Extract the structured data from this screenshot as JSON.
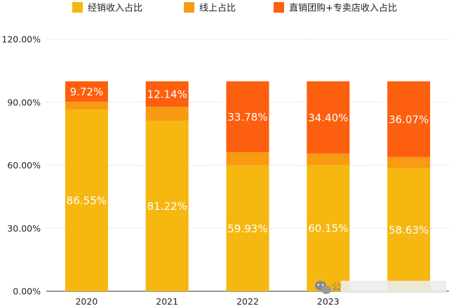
{
  "chart_data": {
    "type": "bar",
    "stacked": true,
    "categories": [
      "2020",
      "2021",
      "2022",
      "2023",
      ""
    ],
    "series": [
      {
        "name": "经销收入占比",
        "color": "#F5B710",
        "values": [
          86.55,
          81.22,
          59.93,
          60.15,
          58.63
        ],
        "labels": [
          "86.55%",
          "81.22%",
          "59.93%",
          "60.15%",
          "58.63%"
        ]
      },
      {
        "name": "线上占比",
        "color": "#F89B13",
        "values": [
          3.73,
          6.64,
          6.29,
          5.45,
          5.3
        ],
        "labels": [
          "",
          "",
          "",
          "",
          ""
        ]
      },
      {
        "name": "直销团购+专卖店收入占比",
        "color": "#FC5F0E",
        "values": [
          9.72,
          12.14,
          33.78,
          34.4,
          36.07
        ],
        "labels": [
          "9.72%",
          "12.14%",
          "33.78%",
          "34.40%",
          "36.07%"
        ]
      }
    ],
    "ylim": [
      0,
      120
    ],
    "yticks": [
      0,
      30,
      60,
      90,
      120
    ],
    "ytick_labels": [
      "0.00%",
      "30.00%",
      "60.00%",
      "90.00%",
      "120.00%"
    ],
    "grid": true,
    "legend_position": "top",
    "title": "",
    "xlabel": "",
    "ylabel": ""
  },
  "watermark": {
    "icon": "wechat-icon",
    "text": "公"
  }
}
